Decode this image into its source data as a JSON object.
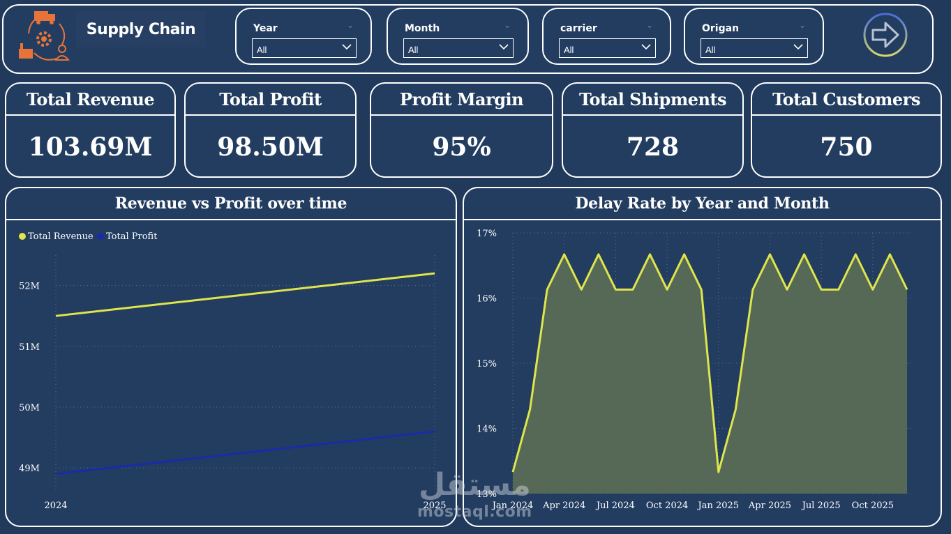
{
  "header": {
    "title": "Supply Chain",
    "logo_icon": "supply-chain-logo-icon",
    "slicers": [
      {
        "label": "Year",
        "value": "All"
      },
      {
        "label": "Month",
        "value": "All"
      },
      {
        "label": "carrier",
        "value": "All"
      },
      {
        "label": "Origan",
        "value": "All"
      }
    ],
    "next_icon": "arrow-right-icon"
  },
  "kpis": [
    {
      "title": "Total Revenue",
      "value": "103.69M"
    },
    {
      "title": "Total Profit",
      "value": "98.50M"
    },
    {
      "title": "Profit Margin",
      "value": "95%"
    },
    {
      "title": "Total Shipments",
      "value": "728"
    },
    {
      "title": "Total Customers",
      "value": "750"
    }
  ],
  "colors": {
    "background": "#21395a",
    "revenue_line": "#dfe54b",
    "profit_line": "#1b2aa8",
    "delay_line": "#dfe54b",
    "delay_fill": "#5a6b55"
  },
  "watermark": {
    "arabic": "مستقل",
    "latin": "mostaql.com"
  },
  "chart_data": [
    {
      "type": "line",
      "title": "Revenue vs Profit over time",
      "x": [
        "2024",
        "2025"
      ],
      "series": [
        {
          "name": "Total Revenue",
          "values": [
            51.5,
            52.2
          ]
        },
        {
          "name": "Total Profit",
          "values": [
            48.9,
            49.6
          ]
        }
      ],
      "ylim": [
        48.6,
        52.5
      ],
      "yticks": [
        49,
        50,
        51,
        52
      ],
      "ytick_labels": [
        "49M",
        "50M",
        "51M",
        "52M"
      ],
      "legend": "top-left",
      "grid": true
    },
    {
      "type": "area",
      "title": "Delay Rate by Year and Month",
      "x": [
        "Jan 2024",
        "Feb 2024",
        "Mar 2024",
        "Apr 2024",
        "May 2024",
        "Jun 2024",
        "Jul 2024",
        "Aug 2024",
        "Sep 2024",
        "Oct 2024",
        "Nov 2024",
        "Dec 2024",
        "Jan 2025",
        "Feb 2025",
        "Mar 2025",
        "Apr 2025",
        "May 2025",
        "Jun 2025",
        "Jul 2025",
        "Aug 2025",
        "Sep 2025",
        "Oct 2025",
        "Nov 2025",
        "Dec 2025"
      ],
      "x_tick_labels": [
        "Jan 2024",
        "Apr 2024",
        "Jul 2024",
        "Oct 2024",
        "Jan 2025",
        "Apr 2025",
        "Jul 2025",
        "Oct 2025"
      ],
      "values": [
        13.33,
        14.29,
        16.13,
        16.67,
        16.13,
        16.67,
        16.13,
        16.13,
        16.67,
        16.13,
        16.67,
        16.13,
        13.33,
        14.29,
        16.13,
        16.67,
        16.13,
        16.67,
        16.13,
        16.13,
        16.67,
        16.13,
        16.67,
        16.13
      ],
      "ylim": [
        13,
        17
      ],
      "yticks": [
        13,
        14,
        15,
        16,
        17
      ],
      "ytick_labels": [
        "13%",
        "14%",
        "15%",
        "16%",
        "17%"
      ],
      "grid": true
    }
  ]
}
